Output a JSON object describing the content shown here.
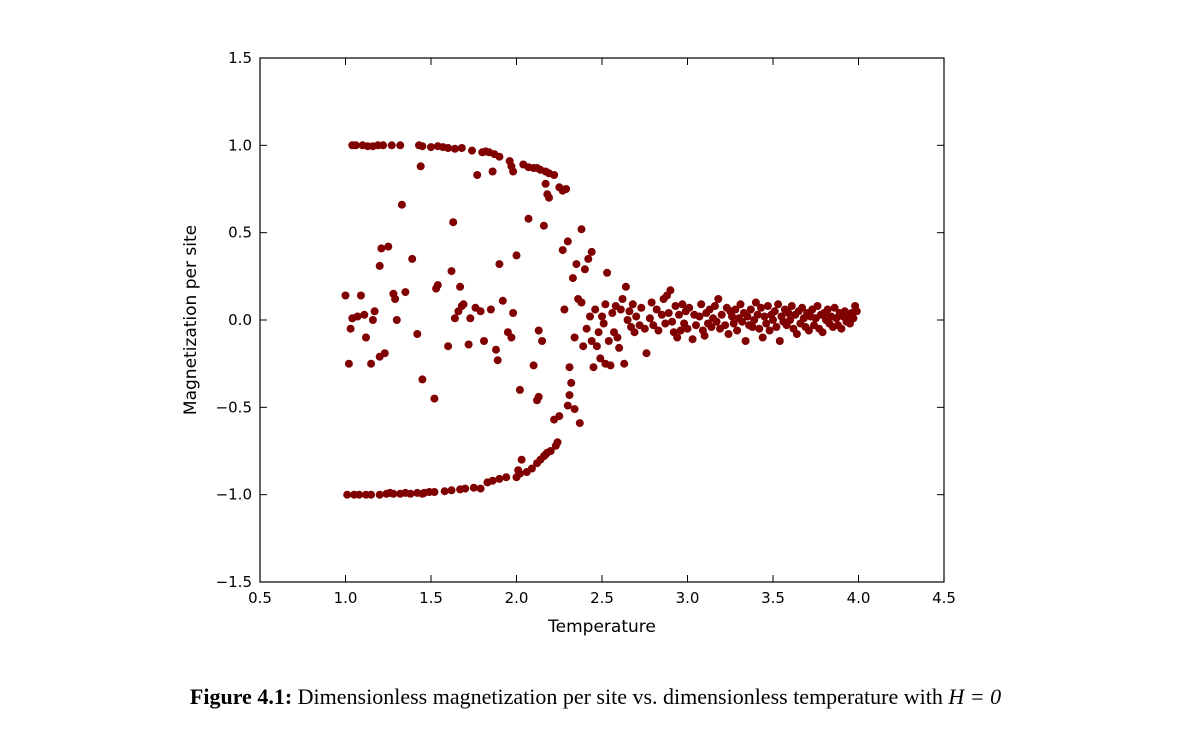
{
  "chart_data": {
    "type": "scatter",
    "xlabel": "Temperature",
    "ylabel": "Magnetization per site",
    "xlim": [
      0.5,
      4.5
    ],
    "ylim": [
      -1.5,
      1.5
    ],
    "xticks": [
      "0.5",
      "1.0",
      "1.5",
      "2.0",
      "2.5",
      "3.0",
      "3.5",
      "4.0",
      "4.5"
    ],
    "yticks": [
      "1.5",
      "1.0",
      "0.5",
      "0.0",
      "−0.5",
      "−1.0",
      "−1.5"
    ],
    "grid": false,
    "marker_color": "#800000",
    "points_upper_branch": [
      [
        1.04,
        1.0
      ],
      [
        1.06,
        1.0
      ],
      [
        1.1,
        1.0
      ],
      [
        1.13,
        0.995
      ],
      [
        1.16,
        0.995
      ],
      [
        1.19,
        1.0
      ],
      [
        1.22,
        1.0
      ],
      [
        1.27,
        1.0
      ],
      [
        1.32,
        1.0
      ],
      [
        1.43,
        1.0
      ],
      [
        1.45,
        0.995
      ],
      [
        1.5,
        0.99
      ],
      [
        1.54,
        0.995
      ],
      [
        1.57,
        0.99
      ],
      [
        1.6,
        0.985
      ],
      [
        1.64,
        0.98
      ],
      [
        1.68,
        0.985
      ],
      [
        1.74,
        0.97
      ],
      [
        1.8,
        0.96
      ],
      [
        1.82,
        0.965
      ],
      [
        1.84,
        0.96
      ],
      [
        1.87,
        0.95
      ],
      [
        1.9,
        0.935
      ],
      [
        1.96,
        0.91
      ],
      [
        1.97,
        0.88
      ],
      [
        2.04,
        0.89
      ],
      [
        2.07,
        0.875
      ],
      [
        2.1,
        0.87
      ],
      [
        2.14,
        0.86
      ],
      [
        2.17,
        0.85
      ],
      [
        2.19,
        0.84
      ],
      [
        2.22,
        0.83
      ],
      [
        2.17,
        0.78
      ],
      [
        2.18,
        0.72
      ],
      [
        2.19,
        0.7
      ],
      [
        2.25,
        0.76
      ],
      [
        2.27,
        0.74
      ],
      [
        2.29,
        0.75
      ],
      [
        1.44,
        0.88
      ],
      [
        1.77,
        0.83
      ],
      [
        1.86,
        0.85
      ],
      [
        1.98,
        0.85
      ],
      [
        2.12,
        0.87
      ]
    ],
    "points_lower_branch": [
      [
        1.01,
        -1.0
      ],
      [
        1.05,
        -1.0
      ],
      [
        1.08,
        -1.0
      ],
      [
        1.12,
        -1.0
      ],
      [
        1.15,
        -1.0
      ],
      [
        1.2,
        -1.0
      ],
      [
        1.24,
        -0.995
      ],
      [
        1.28,
        -0.995
      ],
      [
        1.32,
        -0.995
      ],
      [
        1.35,
        -0.99
      ],
      [
        1.38,
        -0.995
      ],
      [
        1.42,
        -0.99
      ],
      [
        1.46,
        -0.99
      ],
      [
        1.49,
        -0.985
      ],
      [
        1.52,
        -0.985
      ],
      [
        1.58,
        -0.98
      ],
      [
        1.62,
        -0.975
      ],
      [
        1.67,
        -0.97
      ],
      [
        1.7,
        -0.965
      ],
      [
        1.75,
        -0.96
      ],
      [
        1.79,
        -0.965
      ],
      [
        1.83,
        -0.93
      ],
      [
        1.86,
        -0.92
      ],
      [
        1.9,
        -0.91
      ],
      [
        1.94,
        -0.9
      ],
      [
        2.0,
        -0.9
      ],
      [
        2.02,
        -0.88
      ],
      [
        2.06,
        -0.87
      ],
      [
        2.09,
        -0.85
      ],
      [
        2.12,
        -0.82
      ],
      [
        2.14,
        -0.8
      ],
      [
        2.16,
        -0.78
      ],
      [
        2.18,
        -0.76
      ],
      [
        2.2,
        -0.75
      ],
      [
        2.23,
        -0.72
      ],
      [
        2.24,
        -0.7
      ],
      [
        2.03,
        -0.8
      ],
      [
        2.01,
        -0.86
      ],
      [
        2.17,
        -0.77
      ],
      [
        1.26,
        -0.99
      ],
      [
        1.45,
        -0.995
      ]
    ],
    "points_scattered": [
      [
        1.0,
        0.14
      ],
      [
        1.02,
        -0.25
      ],
      [
        1.03,
        -0.05
      ],
      [
        1.04,
        0.01
      ],
      [
        1.07,
        0.02
      ],
      [
        1.09,
        0.14
      ],
      [
        1.11,
        0.03
      ],
      [
        1.12,
        -0.1
      ],
      [
        1.15,
        -0.25
      ],
      [
        1.16,
        0.0
      ],
      [
        1.17,
        0.05
      ],
      [
        1.2,
        0.31
      ],
      [
        1.2,
        -0.21
      ],
      [
        1.21,
        0.41
      ],
      [
        1.23,
        -0.19
      ],
      [
        1.25,
        0.42
      ],
      [
        1.28,
        0.15
      ],
      [
        1.29,
        0.12
      ],
      [
        1.3,
        0.0
      ],
      [
        1.33,
        0.66
      ],
      [
        1.35,
        0.16
      ],
      [
        1.39,
        0.35
      ],
      [
        1.42,
        -0.08
      ],
      [
        1.45,
        -0.34
      ],
      [
        1.52,
        -0.45
      ],
      [
        1.53,
        0.18
      ],
      [
        1.54,
        0.2
      ],
      [
        1.6,
        -0.15
      ],
      [
        1.62,
        0.28
      ],
      [
        1.63,
        0.56
      ],
      [
        1.64,
        0.01
      ],
      [
        1.66,
        0.05
      ],
      [
        1.68,
        0.08
      ],
      [
        1.67,
        0.19
      ],
      [
        1.69,
        0.09
      ],
      [
        1.72,
        -0.14
      ],
      [
        1.73,
        0.01
      ],
      [
        1.76,
        0.07
      ],
      [
        1.79,
        0.05
      ],
      [
        1.81,
        -0.12
      ],
      [
        1.85,
        0.06
      ],
      [
        1.88,
        -0.17
      ],
      [
        1.89,
        -0.23
      ],
      [
        1.9,
        0.32
      ],
      [
        1.92,
        0.11
      ],
      [
        1.95,
        -0.07
      ],
      [
        1.97,
        -0.1
      ],
      [
        1.98,
        0.04
      ],
      [
        2.0,
        0.37
      ],
      [
        2.02,
        -0.4
      ],
      [
        2.07,
        0.58
      ],
      [
        2.1,
        -0.26
      ],
      [
        2.12,
        -0.46
      ],
      [
        2.13,
        -0.44
      ],
      [
        2.13,
        -0.06
      ],
      [
        2.15,
        -0.12
      ],
      [
        2.16,
        0.54
      ],
      [
        2.22,
        -0.57
      ],
      [
        2.25,
        -0.55
      ],
      [
        2.27,
        0.4
      ],
      [
        2.28,
        0.06
      ],
      [
        2.3,
        0.45
      ],
      [
        2.3,
        -0.49
      ],
      [
        2.31,
        -0.27
      ],
      [
        2.31,
        -0.43
      ],
      [
        2.32,
        -0.36
      ],
      [
        2.33,
        0.24
      ],
      [
        2.34,
        -0.1
      ],
      [
        2.34,
        -0.51
      ],
      [
        2.35,
        0.32
      ],
      [
        2.36,
        0.12
      ],
      [
        2.37,
        -0.59
      ],
      [
        2.38,
        0.52
      ],
      [
        2.38,
        0.1
      ],
      [
        2.39,
        -0.15
      ],
      [
        2.4,
        0.29
      ],
      [
        2.41,
        -0.05
      ],
      [
        2.42,
        0.35
      ],
      [
        2.43,
        0.02
      ],
      [
        2.44,
        -0.12
      ],
      [
        2.44,
        0.39
      ],
      [
        2.45,
        -0.27
      ],
      [
        2.46,
        0.06
      ],
      [
        2.47,
        -0.15
      ],
      [
        2.48,
        -0.07
      ],
      [
        2.49,
        -0.22
      ],
      [
        2.5,
        0.02
      ],
      [
        2.51,
        -0.02
      ],
      [
        2.52,
        0.09
      ],
      [
        2.52,
        -0.25
      ],
      [
        2.53,
        0.27
      ],
      [
        2.54,
        -0.12
      ],
      [
        2.55,
        -0.26
      ],
      [
        2.56,
        0.04
      ],
      [
        2.57,
        -0.07
      ],
      [
        2.58,
        0.08
      ],
      [
        2.59,
        -0.1
      ],
      [
        2.6,
        -0.16
      ],
      [
        2.61,
        0.06
      ],
      [
        2.62,
        0.12
      ],
      [
        2.63,
        -0.25
      ],
      [
        2.64,
        0.19
      ],
      [
        2.65,
        0.0
      ],
      [
        2.66,
        0.05
      ],
      [
        2.67,
        -0.04
      ],
      [
        2.68,
        0.09
      ],
      [
        2.69,
        -0.07
      ],
      [
        2.7,
        0.02
      ],
      [
        2.72,
        -0.03
      ],
      [
        2.73,
        0.07
      ],
      [
        2.75,
        -0.05
      ],
      [
        2.76,
        -0.19
      ],
      [
        2.78,
        0.01
      ],
      [
        2.79,
        0.1
      ],
      [
        2.8,
        -0.03
      ],
      [
        2.82,
        0.06
      ],
      [
        2.83,
        -0.06
      ],
      [
        2.85,
        0.03
      ],
      [
        2.86,
        0.12
      ],
      [
        2.87,
        -0.02
      ],
      [
        2.88,
        0.14
      ],
      [
        2.89,
        0.04
      ],
      [
        2.9,
        0.17
      ],
      [
        2.91,
        -0.01
      ],
      [
        2.92,
        -0.07
      ],
      [
        2.93,
        0.08
      ],
      [
        2.94,
        -0.1
      ],
      [
        2.95,
        0.03
      ],
      [
        2.96,
        -0.06
      ],
      [
        2.97,
        0.09
      ],
      [
        2.98,
        -0.02
      ],
      [
        2.99,
        0.05
      ],
      [
        3.0,
        -0.05
      ],
      [
        3.01,
        0.07
      ],
      [
        3.03,
        -0.11
      ],
      [
        3.04,
        0.03
      ],
      [
        3.05,
        -0.03
      ],
      [
        3.07,
        0.02
      ],
      [
        3.08,
        0.09
      ],
      [
        3.09,
        -0.06
      ],
      [
        3.1,
        -0.09
      ],
      [
        3.11,
        0.04
      ],
      [
        3.12,
        -0.02
      ],
      [
        3.13,
        0.06
      ],
      [
        3.14,
        -0.04
      ],
      [
        3.15,
        0.01
      ],
      [
        3.16,
        0.08
      ],
      [
        3.17,
        -0.01
      ],
      [
        3.18,
        0.12
      ],
      [
        3.19,
        -0.05
      ],
      [
        3.2,
        0.03
      ],
      [
        3.22,
        -0.03
      ],
      [
        3.23,
        0.07
      ],
      [
        3.24,
        -0.08
      ],
      [
        3.25,
        0.05
      ],
      [
        3.26,
        0.02
      ],
      [
        3.27,
        -0.02
      ],
      [
        3.28,
        0.06
      ],
      [
        3.29,
        -0.06
      ],
      [
        3.3,
        0.01
      ],
      [
        3.31,
        0.09
      ],
      [
        3.32,
        -0.01
      ],
      [
        3.33,
        0.04
      ],
      [
        3.34,
        -0.12
      ],
      [
        3.35,
        0.02
      ],
      [
        3.36,
        -0.03
      ],
      [
        3.37,
        0.06
      ],
      [
        3.38,
        -0.04
      ],
      [
        3.39,
        0.0
      ],
      [
        3.4,
        0.1
      ],
      [
        3.41,
        0.03
      ],
      [
        3.42,
        -0.05
      ],
      [
        3.43,
        0.07
      ],
      [
        3.44,
        -0.1
      ],
      [
        3.45,
        0.02
      ],
      [
        3.46,
        -0.02
      ],
      [
        3.47,
        0.08
      ],
      [
        3.48,
        -0.06
      ],
      [
        3.49,
        0.03
      ],
      [
        3.5,
        0.0
      ],
      [
        3.51,
        0.05
      ],
      [
        3.52,
        -0.04
      ],
      [
        3.53,
        0.09
      ],
      [
        3.54,
        -0.12
      ],
      [
        3.55,
        0.02
      ],
      [
        3.56,
        -0.01
      ],
      [
        3.57,
        0.06
      ],
      [
        3.58,
        -0.03
      ],
      [
        3.59,
        0.04
      ],
      [
        3.6,
        0.0
      ],
      [
        3.61,
        0.08
      ],
      [
        3.62,
        -0.05
      ],
      [
        3.63,
        0.03
      ],
      [
        3.64,
        -0.08
      ],
      [
        3.65,
        0.05
      ],
      [
        3.66,
        -0.02
      ],
      [
        3.67,
        0.07
      ],
      [
        3.68,
        0.01
      ],
      [
        3.69,
        -0.04
      ],
      [
        3.7,
        0.04
      ],
      [
        3.71,
        -0.06
      ],
      [
        3.72,
        0.02
      ],
      [
        3.73,
        0.06
      ],
      [
        3.74,
        -0.03
      ],
      [
        3.75,
        0.01
      ],
      [
        3.76,
        0.08
      ],
      [
        3.77,
        -0.05
      ],
      [
        3.78,
        0.03
      ],
      [
        3.79,
        -0.07
      ],
      [
        3.8,
        0.04
      ],
      [
        3.81,
        0.0
      ],
      [
        3.82,
        0.06
      ],
      [
        3.83,
        -0.02
      ],
      [
        3.84,
        0.02
      ],
      [
        3.85,
        -0.04
      ],
      [
        3.86,
        0.07
      ],
      [
        3.87,
        0.01
      ],
      [
        3.88,
        -0.03
      ],
      [
        3.89,
        0.04
      ],
      [
        3.9,
        -0.05
      ],
      [
        3.91,
        0.02
      ],
      [
        3.92,
        0.05
      ],
      [
        3.93,
        -0.01
      ],
      [
        3.94,
        0.03
      ],
      [
        3.95,
        -0.02
      ],
      [
        3.96,
        0.04
      ],
      [
        3.97,
        0.01
      ],
      [
        3.98,
        0.08
      ],
      [
        3.99,
        0.05
      ]
    ]
  },
  "caption": {
    "label": "Figure 4.1:",
    "text": " Dimensionless magnetization per site vs. dimensionless temperature with ",
    "math": "H = 0"
  }
}
